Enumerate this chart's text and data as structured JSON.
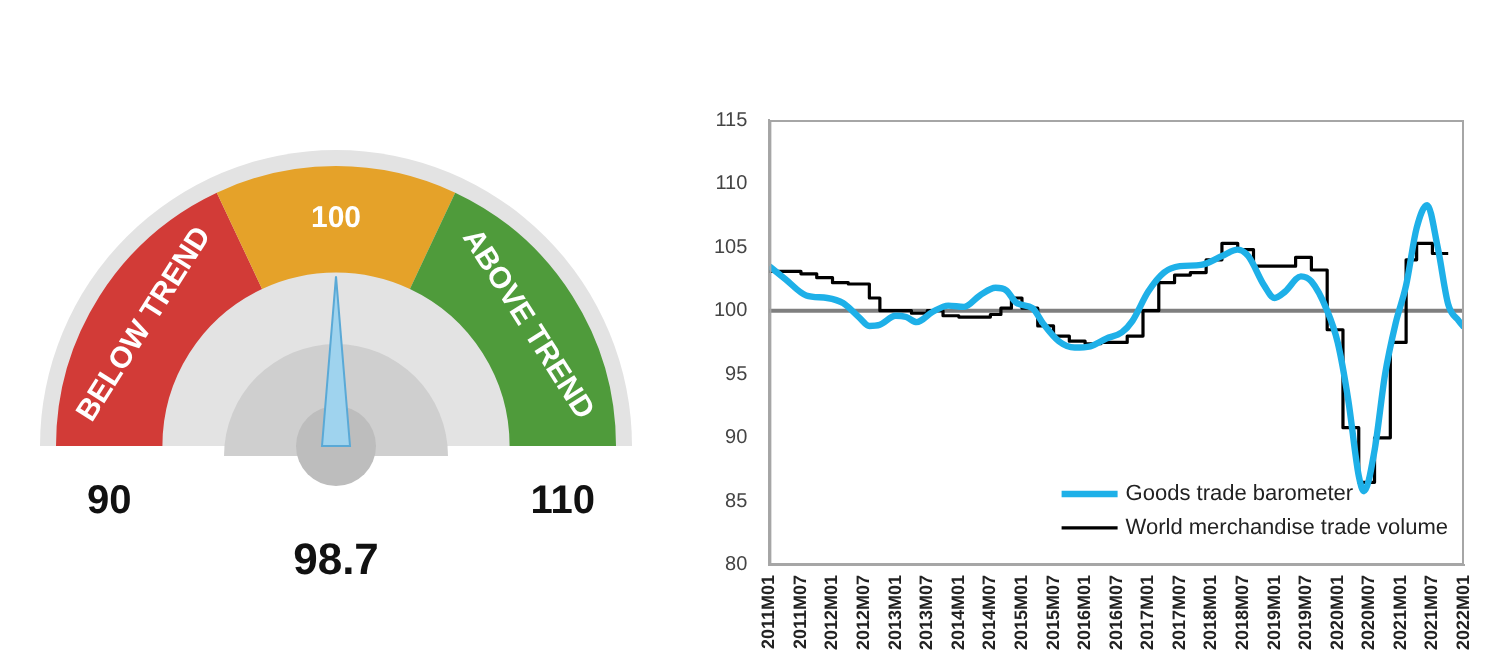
{
  "chart_data": [
    {
      "type": "donut",
      "categories": [
        "BELOW TREND",
        "100",
        "ABOVE TREND"
      ],
      "values": [
        36,
        28,
        36
      ],
      "colors": [
        "#d23b37",
        "#e5a229",
        "#4f9b3b"
      ],
      "needle": "100",
      "annotations": [
        "90",
        "110",
        "98.7"
      ]
    },
    {
      "type": "line",
      "xlim": [
        "2011-01",
        "2022-01"
      ],
      "ylim": [
        80,
        115
      ],
      "yticks": [
        80,
        85,
        90,
        95,
        100,
        105,
        110,
        115
      ],
      "xticks": [
        {
          "value": "2011-01",
          "label": "2011M01"
        },
        {
          "value": "2011-07",
          "label": "2011M07"
        },
        {
          "value": "2012-01",
          "label": "2012M01"
        },
        {
          "value": "2012-07",
          "label": "2012M07"
        },
        {
          "value": "2013-01",
          "label": "2013M01"
        },
        {
          "value": "2013-07",
          "label": "2013M07"
        },
        {
          "value": "2014-01",
          "label": "2014M01"
        },
        {
          "value": "2014-07",
          "label": "2014M07"
        },
        {
          "value": "2015-01",
          "label": "2015M01"
        },
        {
          "value": "2015-07",
          "label": "2015M07"
        },
        {
          "value": "2016-01",
          "label": "2016M01"
        },
        {
          "value": "2016-07",
          "label": "2016M07"
        },
        {
          "value": "2017-01",
          "label": "2017M01"
        },
        {
          "value": "2017-07",
          "label": "2017M07"
        },
        {
          "value": "2018-01",
          "label": "2018M01"
        },
        {
          "value": "2018-07",
          "label": "2018M07"
        },
        {
          "value": "2019-01",
          "label": "2019M01"
        },
        {
          "value": "2019-07",
          "label": "2019M07"
        },
        {
          "value": "2020-01",
          "label": "2020M01"
        },
        {
          "value": "2020-07",
          "label": "2020M07"
        },
        {
          "value": "2021-01",
          "label": "2021M01"
        },
        {
          "value": "2021-07",
          "label": "2021M07"
        },
        {
          "value": "2022-01",
          "label": "2022M01"
        }
      ],
      "ref_lines": [
        {
          "axis": "y",
          "value": 100,
          "color": "#7f7f7f"
        }
      ],
      "legend": "bottom right",
      "marker": "none",
      "series": [
        {
          "name": "Goods trade barometer",
          "type": "line",
          "color": "#1eb0e8",
          "x": [
            "2011-01",
            "2011-04",
            "2011-08",
            "2011-12",
            "2012-03",
            "2012-06",
            "2012-08",
            "2012-10",
            "2013-01",
            "2013-03",
            "2013-05",
            "2013-08",
            "2013-11",
            "2014-02",
            "2014-05",
            "2014-08",
            "2014-10",
            "2014-12",
            "2015-03",
            "2015-05",
            "2015-08",
            "2015-11",
            "2016-02",
            "2016-05",
            "2016-08",
            "2016-10",
            "2017-01",
            "2017-04",
            "2017-07",
            "2017-11",
            "2018-03",
            "2018-06",
            "2018-08",
            "2018-11",
            "2019-01",
            "2019-03",
            "2019-06",
            "2019-08",
            "2019-11",
            "2020-01",
            "2020-03",
            "2020-05",
            "2020-06",
            "2020-08",
            "2020-10",
            "2020-12",
            "2021-02",
            "2021-04",
            "2021-06",
            "2021-08",
            "2021-10",
            "2021-12",
            "2022-01"
          ],
          "values": [
            103.5,
            102.5,
            101.2,
            101.0,
            100.6,
            99.5,
            98.8,
            98.9,
            99.6,
            99.5,
            99.1,
            99.9,
            100.4,
            100.3,
            101.2,
            101.8,
            101.6,
            100.6,
            100.2,
            99.0,
            97.6,
            97.1,
            97.2,
            97.8,
            98.3,
            99.2,
            101.5,
            103.0,
            103.5,
            103.6,
            104.3,
            104.8,
            104.3,
            102.0,
            101.0,
            101.5,
            102.7,
            102.3,
            100.0,
            97.5,
            93.0,
            87.0,
            85.8,
            89.0,
            95.0,
            99.0,
            102.0,
            106.5,
            108.3,
            105.0,
            100.5,
            99.2,
            98.7
          ]
        },
        {
          "name": "World merchandise trade volume",
          "type": "step",
          "color": "#000000",
          "x": [
            "2011-01",
            "2011-07",
            "2011-10",
            "2012-01",
            "2012-04",
            "2012-08",
            "2012-10",
            "2013-04",
            "2013-07",
            "2013-10",
            "2014-01",
            "2014-07",
            "2014-09",
            "2014-11",
            "2015-01",
            "2015-04",
            "2015-07",
            "2015-10",
            "2016-01",
            "2016-04",
            "2016-09",
            "2016-12",
            "2017-03",
            "2017-06",
            "2017-09",
            "2017-12",
            "2018-03",
            "2018-06",
            "2018-09",
            "2019-03",
            "2019-05",
            "2019-08",
            "2019-11",
            "2020-02",
            "2020-05",
            "2020-08",
            "2020-11",
            "2021-02",
            "2021-04",
            "2021-07",
            "2021-10"
          ],
          "values": [
            103.1,
            102.9,
            102.6,
            102.2,
            102.1,
            101.0,
            100.0,
            99.8,
            100.0,
            99.6,
            99.5,
            99.7,
            100.2,
            101.0,
            100.2,
            98.8,
            98.0,
            97.6,
            97.4,
            97.5,
            98.0,
            100.0,
            102.2,
            102.8,
            103.0,
            104.0,
            105.3,
            104.8,
            103.5,
            103.5,
            104.2,
            103.2,
            98.5,
            90.8,
            86.5,
            90.0,
            97.5,
            104.0,
            105.3,
            104.5,
            104.5
          ]
        }
      ]
    }
  ]
}
